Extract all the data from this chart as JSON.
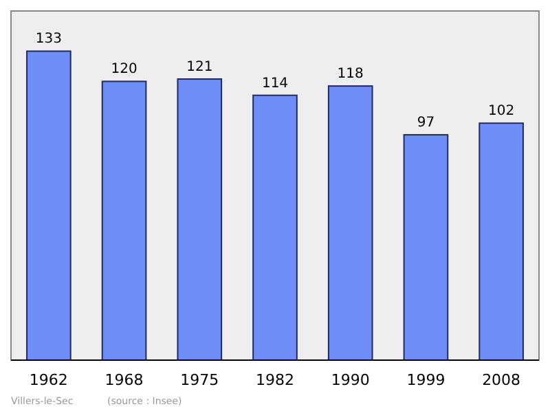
{
  "chart_data": {
    "type": "bar",
    "categories": [
      "1962",
      "1968",
      "1975",
      "1982",
      "1990",
      "1999",
      "2008"
    ],
    "values": [
      133,
      120,
      121,
      114,
      118,
      97,
      102
    ],
    "color": "#6f8ef7",
    "data_labels": true,
    "annotations": [
      "Villers-le-Sec",
      "(source : Insee)"
    ]
  }
}
